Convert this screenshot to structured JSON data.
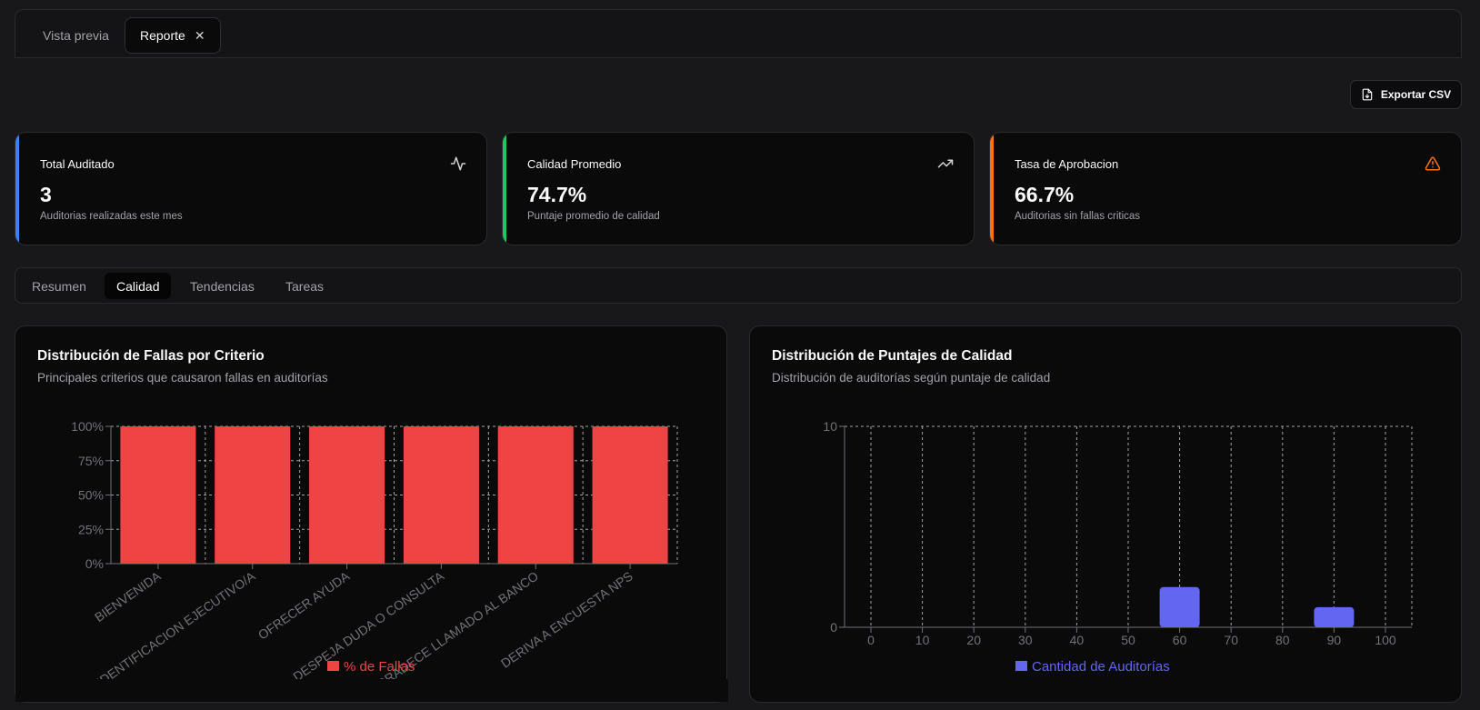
{
  "tabs": [
    {
      "label": "Vista previa"
    },
    {
      "label": "Reporte",
      "close": "✕"
    }
  ],
  "export_label": "Exportar CSV",
  "kpis": [
    {
      "title": "Total Auditado",
      "value": "3",
      "subtitle": "Auditorias realizadas este mes",
      "accent": "#3b82f6",
      "icon": "activity-icon"
    },
    {
      "title": "Calidad Promedio",
      "value": "74.7%",
      "subtitle": "Puntaje promedio de calidad",
      "accent": "#22c55e",
      "icon": "trending-up-icon"
    },
    {
      "title": "Tasa de Aprobacion",
      "value": "66.7%",
      "subtitle": "Auditorias sin fallas criticas",
      "accent": "#f97316",
      "icon": "alert-triangle-icon"
    }
  ],
  "sections": [
    "Resumen",
    "Calidad",
    "Tendencias",
    "Tareas"
  ],
  "active_section": "Calidad",
  "cards": {
    "fallas": {
      "title": "Distribución de Fallas por Criterio",
      "description": "Principales criterios que causaron fallas en auditorías"
    },
    "puntajes": {
      "title": "Distribución de Puntajes de Calidad",
      "description": "Distribución de auditorías según puntaje de calidad"
    }
  },
  "chart_data": [
    {
      "type": "bar",
      "categories": [
        "BIENVENIDA",
        "IDENTIFICACION EJECUTIVO/A",
        "OFRECER AYUDA",
        "DESPEJA DUDA O CONSULTA",
        "AGRADECE LLAMADO AL BANCO",
        "DERIVA A ENCUESTA NPS"
      ],
      "series": [
        {
          "name": "% de Fallas",
          "values": [
            100,
            100,
            100,
            100,
            100,
            100
          ]
        }
      ],
      "yticks": [
        "0%",
        "25%",
        "50%",
        "75%",
        "100%"
      ],
      "ylim": [
        0,
        100
      ],
      "grid": true,
      "legend": "bottom",
      "color": "#ef4444"
    },
    {
      "type": "bar",
      "x": [
        0,
        10,
        20,
        30,
        40,
        50,
        60,
        70,
        80,
        90,
        100
      ],
      "series": [
        {
          "name": "Cantidad de Auditorías",
          "values": [
            0,
            0,
            0,
            0,
            0,
            0,
            2,
            0,
            0,
            1,
            0
          ]
        }
      ],
      "yticks": [
        "0",
        "10"
      ],
      "ylim": [
        0,
        10
      ],
      "grid": true,
      "legend": "bottom",
      "color": "#6366f1"
    }
  ]
}
